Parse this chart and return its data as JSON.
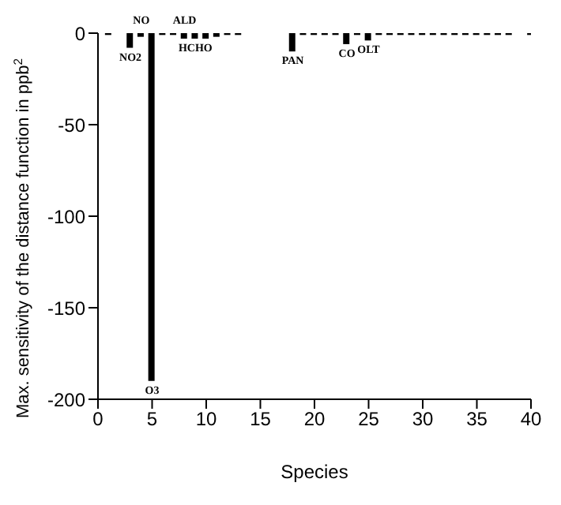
{
  "chart_data": {
    "type": "bar",
    "x": [
      1,
      2,
      3,
      4,
      5,
      6,
      7,
      8,
      9,
      10,
      11,
      12,
      13,
      14,
      15,
      16,
      17,
      18,
      19,
      20,
      21,
      22,
      23,
      24,
      25,
      26,
      27,
      28,
      29,
      30,
      31,
      32,
      33,
      34,
      35,
      36,
      37,
      38,
      39,
      40
    ],
    "values": [
      -1,
      0,
      -8,
      -2,
      -190,
      -1,
      -1,
      -3,
      -3,
      -3,
      -2,
      -1,
      -1,
      0,
      0,
      0,
      0,
      -10,
      -1,
      -1,
      -1,
      -1,
      -6,
      -1,
      -4,
      -1,
      -1,
      -1,
      -1,
      -1,
      -1,
      -1,
      -1,
      -1,
      -1,
      -1,
      -1,
      -1,
      0,
      -1
    ],
    "color": "#000000",
    "xlabel": "Species",
    "ylabel": "Max. sensitivity of the distance function in ppb$^{2}$",
    "xlim": [
      0,
      40
    ],
    "xticks": [
      0,
      5,
      10,
      15,
      20,
      25,
      30,
      35,
      40
    ],
    "ylim": [
      -200,
      0
    ],
    "yticks": [
      -200,
      -150,
      -100,
      -50,
      0
    ],
    "grid": false,
    "legend": false,
    "annotations": [
      {
        "text": "NO2",
        "x": 3,
        "y": -8
      },
      {
        "text": "NO",
        "x": 4,
        "y": 0
      },
      {
        "text": "O3",
        "x": 5,
        "y": -190
      },
      {
        "text": "ALD",
        "x": 8,
        "y": 0
      },
      {
        "text": "HCHO",
        "x": 9,
        "y": -3
      },
      {
        "text": "PAN",
        "x": 18,
        "y": -10
      },
      {
        "text": "CO",
        "x": 23,
        "y": -6
      },
      {
        "text": "OLT",
        "x": 25,
        "y": -4
      }
    ]
  }
}
